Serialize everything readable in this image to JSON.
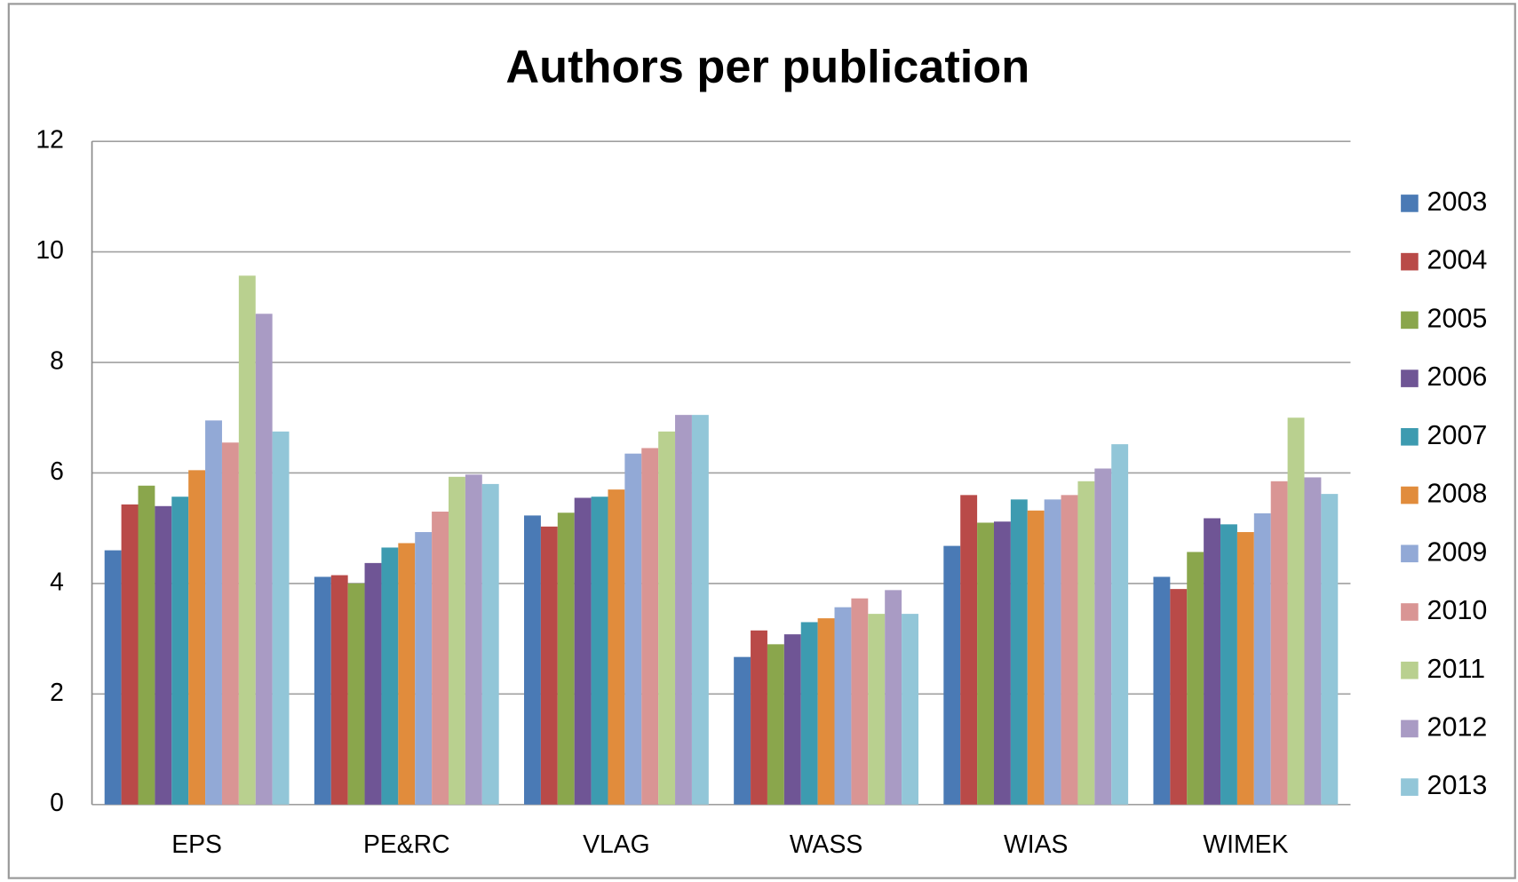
{
  "chart_data": {
    "type": "bar",
    "title": "Authors per publication",
    "categories": [
      "EPS",
      "PE&RC",
      "VLAG",
      "WASS",
      "WIAS",
      "WIMEK"
    ],
    "ylim": [
      0,
      12
    ],
    "yticks": [
      0,
      2,
      4,
      6,
      8,
      10,
      12
    ],
    "grid": true,
    "legend": "right",
    "series": [
      {
        "name": "2003",
        "color": "#4a7ab5",
        "values": [
          4.6,
          4.12,
          5.23,
          2.67,
          4.68,
          4.12
        ]
      },
      {
        "name": "2004",
        "color": "#b94a48",
        "values": [
          5.43,
          4.15,
          5.03,
          3.15,
          5.6,
          3.9
        ]
      },
      {
        "name": "2005",
        "color": "#8aa64c",
        "values": [
          5.77,
          4.0,
          5.28,
          2.9,
          5.1,
          4.57
        ]
      },
      {
        "name": "2006",
        "color": "#6f5595",
        "values": [
          5.4,
          4.37,
          5.55,
          3.08,
          5.12,
          5.18
        ]
      },
      {
        "name": "2007",
        "color": "#3d9bb0",
        "values": [
          5.57,
          4.65,
          5.57,
          3.3,
          5.52,
          5.07
        ]
      },
      {
        "name": "2008",
        "color": "#e18c3c",
        "values": [
          6.05,
          4.73,
          5.7,
          3.37,
          5.32,
          4.93
        ]
      },
      {
        "name": "2009",
        "color": "#92a9d6",
        "values": [
          6.95,
          4.93,
          6.35,
          3.57,
          5.52,
          5.27
        ]
      },
      {
        "name": "2010",
        "color": "#d99594",
        "values": [
          6.55,
          5.3,
          6.45,
          3.73,
          5.6,
          5.85
        ]
      },
      {
        "name": "2011",
        "color": "#b9d08f",
        "values": [
          9.57,
          5.93,
          6.75,
          3.45,
          5.85,
          7.0
        ]
      },
      {
        "name": "2012",
        "color": "#a99bc4",
        "values": [
          8.88,
          5.97,
          7.05,
          3.88,
          6.08,
          5.92
        ]
      },
      {
        "name": "2013",
        "color": "#92c6d8",
        "values": [
          6.75,
          5.8,
          7.05,
          3.45,
          6.52,
          5.62
        ]
      }
    ]
  }
}
